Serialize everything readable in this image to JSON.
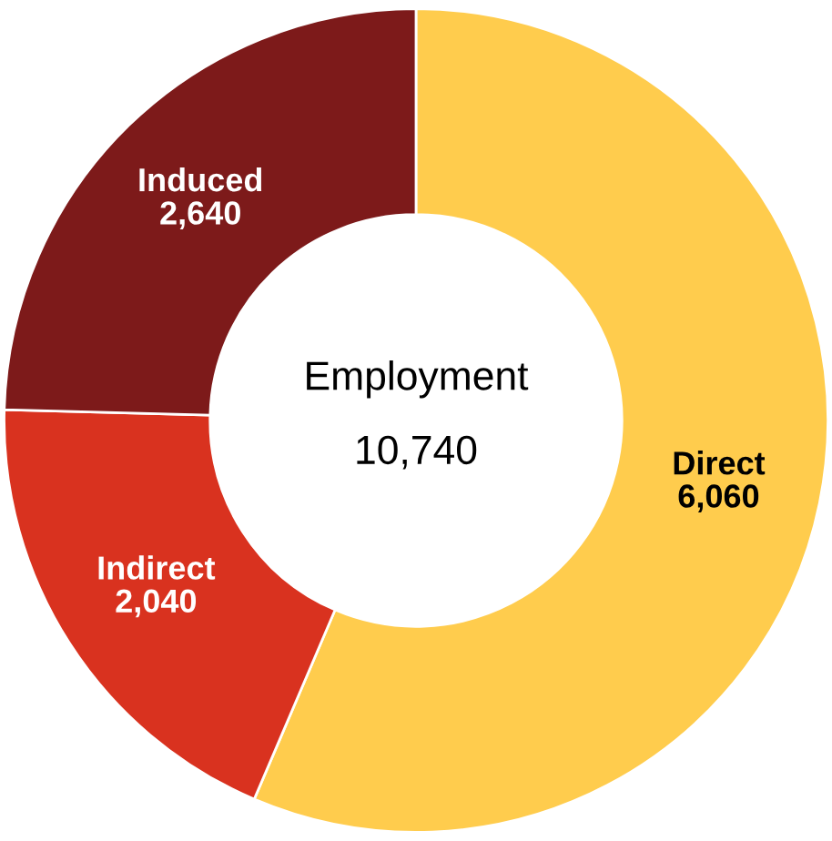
{
  "chart_data": {
    "type": "donut",
    "title": "Employment",
    "annotations": [
      "10,740"
    ],
    "categories": [
      "Direct",
      "Indirect",
      "Induced"
    ],
    "values": [
      6060,
      2040,
      2640
    ],
    "value_labels": [
      "6,060",
      "2,040",
      "2,640"
    ],
    "colors": [
      "#ffcc4d",
      "#d9321f",
      "#7d1a1a"
    ],
    "legend": false
  }
}
